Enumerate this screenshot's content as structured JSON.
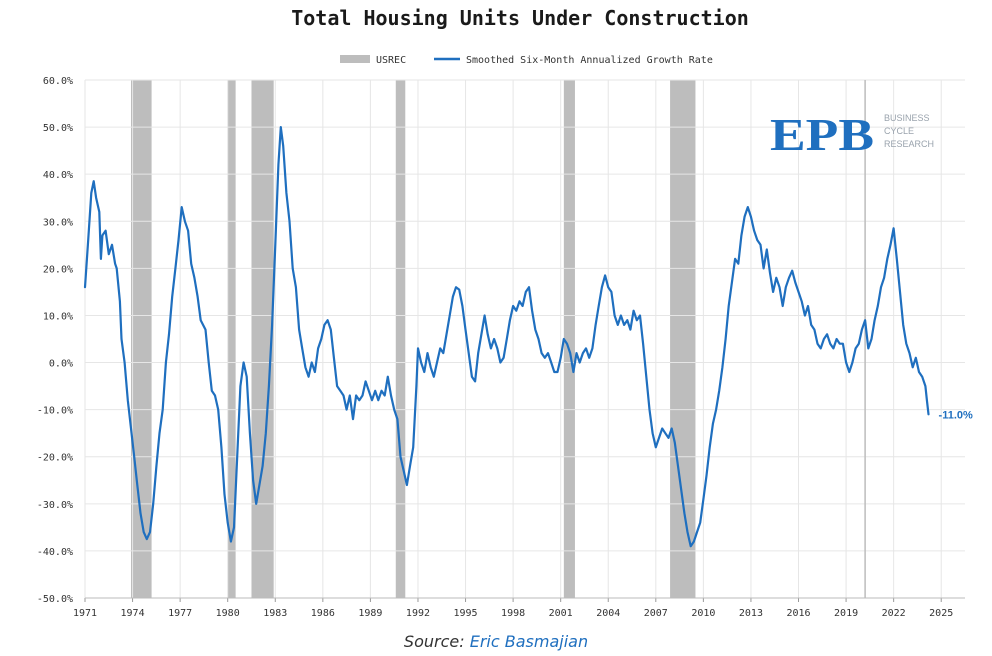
{
  "chart_data": {
    "type": "line",
    "title": "Total Housing Units Under Construction",
    "legend": [
      {
        "name": "USREC",
        "kind": "band",
        "color": "#bdbdbd"
      },
      {
        "name": "Smoothed Six-Month Annualized Growth Rate",
        "kind": "line",
        "color": "#1f6fbf"
      }
    ],
    "legend_position": "top-center",
    "xlim": [
      1971,
      2026.5
    ],
    "ylim": [
      -50,
      60
    ],
    "x_ticks": [
      1971,
      1974,
      1977,
      1980,
      1983,
      1986,
      1989,
      1992,
      1995,
      1998,
      2001,
      2004,
      2007,
      2010,
      2013,
      2016,
      2019,
      2022,
      2025
    ],
    "y_ticks": [
      -50,
      -40,
      -30,
      -20,
      -10,
      0,
      10,
      20,
      30,
      40,
      50,
      60
    ],
    "y_tick_labels": [
      "-50.0%",
      "-40.0%",
      "-30.0%",
      "-20.0%",
      "-10.0%",
      "0.0%",
      "10.0%",
      "20.0%",
      "30.0%",
      "40.0%",
      "50.0%",
      "60.0%"
    ],
    "grid": true,
    "recessions": [
      [
        1973.9,
        1975.2
      ],
      [
        1980.0,
        1980.5
      ],
      [
        1981.5,
        1982.9
      ],
      [
        1990.6,
        1991.2
      ],
      [
        2001.2,
        2001.9
      ],
      [
        2007.9,
        2009.5
      ]
    ],
    "vline_x": 2020.2,
    "end_label": "-11.0%",
    "series": [
      {
        "name": "Smoothed Six-Month Annualized Growth Rate",
        "color": "#1f6fbf",
        "points": [
          [
            1971.0,
            16
          ],
          [
            1971.2,
            26
          ],
          [
            1971.4,
            36
          ],
          [
            1971.55,
            38.5
          ],
          [
            1971.7,
            35
          ],
          [
            1971.9,
            32
          ],
          [
            1972.0,
            22
          ],
          [
            1972.1,
            27
          ],
          [
            1972.3,
            28
          ],
          [
            1972.5,
            23
          ],
          [
            1972.7,
            25
          ],
          [
            1972.9,
            21
          ],
          [
            1973.0,
            20
          ],
          [
            1973.2,
            13
          ],
          [
            1973.3,
            5
          ],
          [
            1973.5,
            0
          ],
          [
            1973.7,
            -8
          ],
          [
            1973.9,
            -14
          ],
          [
            1974.1,
            -20
          ],
          [
            1974.3,
            -26
          ],
          [
            1974.5,
            -32
          ],
          [
            1974.7,
            -36
          ],
          [
            1974.9,
            -37.5
          ],
          [
            1975.1,
            -36
          ],
          [
            1975.3,
            -30
          ],
          [
            1975.5,
            -22
          ],
          [
            1975.7,
            -15
          ],
          [
            1975.9,
            -10
          ],
          [
            1976.1,
            0
          ],
          [
            1976.3,
            6
          ],
          [
            1976.5,
            14
          ],
          [
            1976.7,
            20
          ],
          [
            1976.9,
            26
          ],
          [
            1977.1,
            33
          ],
          [
            1977.3,
            30
          ],
          [
            1977.5,
            28
          ],
          [
            1977.7,
            21
          ],
          [
            1977.9,
            18
          ],
          [
            1978.1,
            14
          ],
          [
            1978.3,
            9
          ],
          [
            1978.6,
            7
          ],
          [
            1978.8,
            0
          ],
          [
            1979.0,
            -6
          ],
          [
            1979.2,
            -7
          ],
          [
            1979.4,
            -10
          ],
          [
            1979.6,
            -18
          ],
          [
            1979.8,
            -28
          ],
          [
            1980.0,
            -34
          ],
          [
            1980.2,
            -38
          ],
          [
            1980.4,
            -35
          ],
          [
            1980.6,
            -20
          ],
          [
            1980.8,
            -5
          ],
          [
            1981.0,
            0
          ],
          [
            1981.2,
            -3
          ],
          [
            1981.4,
            -15
          ],
          [
            1981.6,
            -25
          ],
          [
            1981.8,
            -30
          ],
          [
            1982.0,
            -26
          ],
          [
            1982.2,
            -22
          ],
          [
            1982.4,
            -15
          ],
          [
            1982.6,
            -5
          ],
          [
            1982.8,
            8
          ],
          [
            1983.0,
            25
          ],
          [
            1983.2,
            42
          ],
          [
            1983.35,
            50
          ],
          [
            1983.5,
            46
          ],
          [
            1983.7,
            36
          ],
          [
            1983.9,
            30
          ],
          [
            1984.1,
            20
          ],
          [
            1984.3,
            16
          ],
          [
            1984.5,
            7
          ],
          [
            1984.7,
            3
          ],
          [
            1984.9,
            -1
          ],
          [
            1985.1,
            -3
          ],
          [
            1985.3,
            0
          ],
          [
            1985.5,
            -2
          ],
          [
            1985.7,
            3
          ],
          [
            1985.9,
            5
          ],
          [
            1986.1,
            8
          ],
          [
            1986.3,
            9
          ],
          [
            1986.5,
            7
          ],
          [
            1986.7,
            1
          ],
          [
            1986.9,
            -5
          ],
          [
            1987.1,
            -6
          ],
          [
            1987.3,
            -7
          ],
          [
            1987.5,
            -10
          ],
          [
            1987.7,
            -7
          ],
          [
            1987.9,
            -12
          ],
          [
            1988.1,
            -7
          ],
          [
            1988.3,
            -8
          ],
          [
            1988.5,
            -7
          ],
          [
            1988.7,
            -4
          ],
          [
            1988.9,
            -6
          ],
          [
            1989.1,
            -8
          ],
          [
            1989.3,
            -6
          ],
          [
            1989.5,
            -8
          ],
          [
            1989.7,
            -6
          ],
          [
            1989.9,
            -7
          ],
          [
            1990.1,
            -3
          ],
          [
            1990.3,
            -7
          ],
          [
            1990.5,
            -10
          ],
          [
            1990.7,
            -12
          ],
          [
            1990.9,
            -20
          ],
          [
            1991.1,
            -23
          ],
          [
            1991.3,
            -26
          ],
          [
            1991.5,
            -22
          ],
          [
            1991.7,
            -18
          ],
          [
            1991.9,
            -5
          ],
          [
            1992.0,
            3
          ],
          [
            1992.2,
            0
          ],
          [
            1992.4,
            -2
          ],
          [
            1992.6,
            2
          ],
          [
            1992.8,
            -1
          ],
          [
            1993.0,
            -3
          ],
          [
            1993.2,
            0
          ],
          [
            1993.4,
            3
          ],
          [
            1993.6,
            2
          ],
          [
            1993.8,
            6
          ],
          [
            1994.0,
            10
          ],
          [
            1994.2,
            14
          ],
          [
            1994.4,
            16
          ],
          [
            1994.6,
            15.5
          ],
          [
            1994.8,
            12
          ],
          [
            1995.0,
            7
          ],
          [
            1995.2,
            2
          ],
          [
            1995.4,
            -3
          ],
          [
            1995.6,
            -4
          ],
          [
            1995.8,
            2
          ],
          [
            1996.0,
            6
          ],
          [
            1996.2,
            10
          ],
          [
            1996.4,
            6
          ],
          [
            1996.6,
            3
          ],
          [
            1996.8,
            5
          ],
          [
            1997.0,
            3
          ],
          [
            1997.2,
            0
          ],
          [
            1997.4,
            1
          ],
          [
            1997.6,
            5
          ],
          [
            1997.8,
            9
          ],
          [
            1998.0,
            12
          ],
          [
            1998.2,
            11
          ],
          [
            1998.4,
            13
          ],
          [
            1998.6,
            12
          ],
          [
            1998.8,
            15
          ],
          [
            1999.0,
            16
          ],
          [
            1999.2,
            11
          ],
          [
            1999.4,
            7
          ],
          [
            1999.6,
            5
          ],
          [
            1999.8,
            2
          ],
          [
            2000.0,
            1
          ],
          [
            2000.2,
            2
          ],
          [
            2000.4,
            0
          ],
          [
            2000.6,
            -2
          ],
          [
            2000.8,
            -2
          ],
          [
            2001.0,
            1
          ],
          [
            2001.2,
            5
          ],
          [
            2001.4,
            4
          ],
          [
            2001.6,
            2
          ],
          [
            2001.8,
            -2
          ],
          [
            2002.0,
            2
          ],
          [
            2002.2,
            0
          ],
          [
            2002.4,
            2
          ],
          [
            2002.6,
            3
          ],
          [
            2002.8,
            1
          ],
          [
            2003.0,
            3
          ],
          [
            2003.2,
            8
          ],
          [
            2003.4,
            12
          ],
          [
            2003.6,
            16
          ],
          [
            2003.8,
            18.5
          ],
          [
            2004.0,
            16
          ],
          [
            2004.2,
            15
          ],
          [
            2004.4,
            10
          ],
          [
            2004.6,
            8
          ],
          [
            2004.8,
            10
          ],
          [
            2005.0,
            8
          ],
          [
            2005.2,
            9
          ],
          [
            2005.4,
            7
          ],
          [
            2005.6,
            11
          ],
          [
            2005.8,
            9
          ],
          [
            2006.0,
            10
          ],
          [
            2006.2,
            4
          ],
          [
            2006.4,
            -3
          ],
          [
            2006.6,
            -10
          ],
          [
            2006.8,
            -15
          ],
          [
            2007.0,
            -18
          ],
          [
            2007.2,
            -16
          ],
          [
            2007.4,
            -14
          ],
          [
            2007.6,
            -15
          ],
          [
            2007.8,
            -16
          ],
          [
            2008.0,
            -14
          ],
          [
            2008.2,
            -17
          ],
          [
            2008.4,
            -22
          ],
          [
            2008.6,
            -27
          ],
          [
            2008.8,
            -32
          ],
          [
            2009.0,
            -36
          ],
          [
            2009.2,
            -39
          ],
          [
            2009.4,
            -38
          ],
          [
            2009.6,
            -36
          ],
          [
            2009.8,
            -34
          ],
          [
            2010.0,
            -29
          ],
          [
            2010.2,
            -24
          ],
          [
            2010.4,
            -18
          ],
          [
            2010.6,
            -13
          ],
          [
            2010.8,
            -10
          ],
          [
            2011.0,
            -6
          ],
          [
            2011.2,
            -1
          ],
          [
            2011.4,
            5
          ],
          [
            2011.6,
            12
          ],
          [
            2011.8,
            17
          ],
          [
            2012.0,
            22
          ],
          [
            2012.2,
            21
          ],
          [
            2012.4,
            27
          ],
          [
            2012.6,
            31
          ],
          [
            2012.8,
            33
          ],
          [
            2013.0,
            31
          ],
          [
            2013.2,
            28
          ],
          [
            2013.4,
            26
          ],
          [
            2013.6,
            25
          ],
          [
            2013.8,
            20
          ],
          [
            2014.0,
            24
          ],
          [
            2014.2,
            19
          ],
          [
            2014.4,
            15
          ],
          [
            2014.6,
            18
          ],
          [
            2014.8,
            16
          ],
          [
            2015.0,
            12
          ],
          [
            2015.2,
            16
          ],
          [
            2015.4,
            18
          ],
          [
            2015.6,
            19.5
          ],
          [
            2015.8,
            17
          ],
          [
            2016.0,
            15
          ],
          [
            2016.2,
            13
          ],
          [
            2016.4,
            10
          ],
          [
            2016.6,
            12
          ],
          [
            2016.8,
            8
          ],
          [
            2017.0,
            7
          ],
          [
            2017.2,
            4
          ],
          [
            2017.4,
            3
          ],
          [
            2017.6,
            5
          ],
          [
            2017.8,
            6
          ],
          [
            2018.0,
            4
          ],
          [
            2018.2,
            3
          ],
          [
            2018.4,
            5
          ],
          [
            2018.6,
            4
          ],
          [
            2018.8,
            4
          ],
          [
            2019.0,
            0
          ],
          [
            2019.2,
            -2
          ],
          [
            2019.4,
            0
          ],
          [
            2019.6,
            3
          ],
          [
            2019.8,
            4
          ],
          [
            2020.0,
            7
          ],
          [
            2020.2,
            9
          ],
          [
            2020.4,
            3
          ],
          [
            2020.6,
            5
          ],
          [
            2020.8,
            9
          ],
          [
            2021.0,
            12
          ],
          [
            2021.2,
            16
          ],
          [
            2021.4,
            18
          ],
          [
            2021.6,
            22
          ],
          [
            2021.8,
            25
          ],
          [
            2022.0,
            28.5
          ],
          [
            2022.2,
            22
          ],
          [
            2022.4,
            15
          ],
          [
            2022.6,
            8
          ],
          [
            2022.8,
            4
          ],
          [
            2023.0,
            2
          ],
          [
            2023.2,
            -1
          ],
          [
            2023.4,
            1
          ],
          [
            2023.6,
            -2
          ],
          [
            2023.8,
            -3
          ],
          [
            2024.0,
            -5
          ],
          [
            2024.1,
            -8
          ],
          [
            2024.2,
            -11
          ]
        ]
      }
    ],
    "source_label": "Source:",
    "source_name": "Eric Basmajian"
  },
  "logo": {
    "text": "EPB",
    "line1": "BUSINESS",
    "line2": "CYCLE",
    "line3": "RESEARCH"
  }
}
